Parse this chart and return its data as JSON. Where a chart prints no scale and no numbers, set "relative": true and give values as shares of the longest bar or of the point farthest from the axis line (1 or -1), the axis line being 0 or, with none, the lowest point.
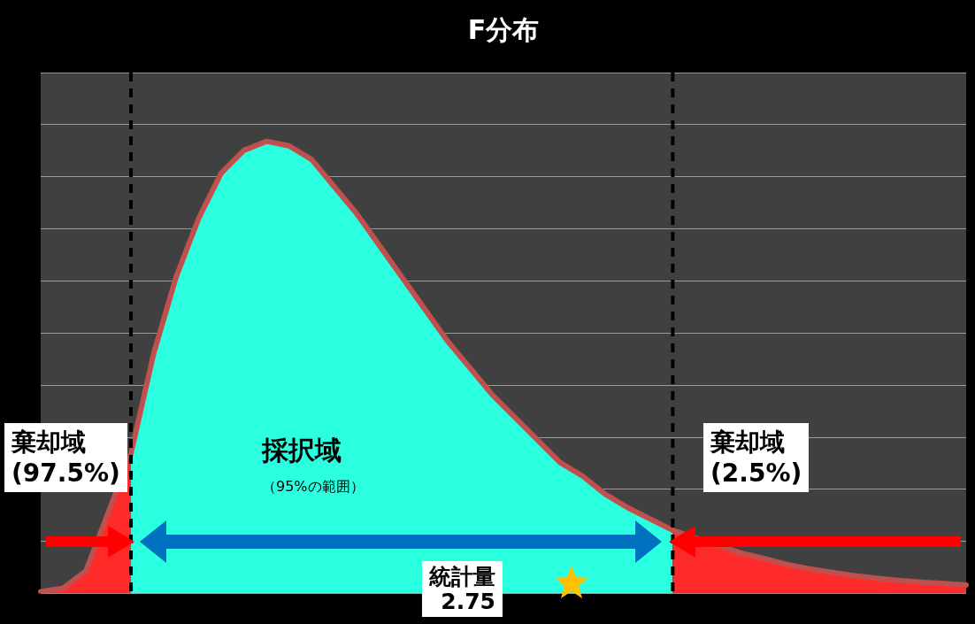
{
  "chart_data": {
    "type": "area",
    "title": "F分布",
    "relative": true,
    "grid": "y",
    "categories": [
      null,
      null,
      null,
      null,
      null,
      null,
      null,
      null,
      null,
      null,
      null,
      null,
      null,
      null,
      null,
      null,
      null,
      null,
      null,
      null,
      null,
      null,
      null,
      null,
      null,
      null,
      null,
      null,
      null,
      null,
      null,
      null,
      null,
      null,
      null,
      null,
      null,
      null,
      null,
      null,
      null,
      null
    ],
    "series": [
      {
        "color": "#ff2a2a",
        "values": [
          0.004,
          0.012,
          0.05,
          null,
          0.31,
          null,
          null,
          null,
          null,
          null,
          null,
          null,
          null,
          null,
          null,
          null,
          null,
          null,
          null,
          null,
          null,
          null,
          null,
          null,
          null,
          null,
          null,
          null,
          null,
          null,
          null,
          null,
          null,
          null,
          null,
          null,
          null,
          null,
          null,
          null,
          null,
          null
        ]
      },
      {
        "color": "#2affe0",
        "values": [
          null,
          null,
          null,
          null,
          0.31,
          0.53,
          0.7,
          0.83,
          0.93,
          0.98,
          1,
          0.99,
          0.96,
          0.9,
          0.84,
          0.77,
          0.7,
          0.63,
          0.56,
          0.5,
          0.44,
          0.39,
          0.34,
          0.29,
          0.26,
          0.22,
          0.19,
          null,
          0.14,
          null,
          null,
          null,
          null,
          null,
          null,
          null,
          null,
          null,
          null,
          null,
          null,
          null
        ]
      },
      {
        "color": "#ff2a2a",
        "values": [
          null,
          null,
          null,
          null,
          null,
          null,
          null,
          null,
          null,
          null,
          null,
          null,
          null,
          null,
          null,
          null,
          null,
          null,
          null,
          null,
          null,
          null,
          null,
          null,
          null,
          null,
          null,
          null,
          0.14,
          null,
          null,
          0.09,
          0.078,
          0.065,
          0.055,
          0.047,
          0.04,
          0.034,
          0.029,
          0.025,
          0.022,
          0.019
        ]
      },
      {
        "type": "line",
        "color": "#c0504d",
        "values": [
          0.004,
          0.012,
          0.05,
          null,
          0.31,
          0.53,
          0.7,
          0.83,
          0.93,
          0.98,
          1,
          0.99,
          0.96,
          0.9,
          0.84,
          0.77,
          0.7,
          0.63,
          0.56,
          0.5,
          0.44,
          0.39,
          0.34,
          0.29,
          0.26,
          0.22,
          0.19,
          null,
          0.14,
          null,
          null,
          0.09,
          0.078,
          0.065,
          0.055,
          0.047,
          0.04,
          0.034,
          0.029,
          0.025,
          0.022,
          0.019
        ]
      }
    ],
    "annotations": [
      "棄却域\n(97.5%)",
      "採択域",
      "（95%の範囲）",
      "棄却域\n(2.5%)",
      "統計量\n2.75"
    ]
  }
}
